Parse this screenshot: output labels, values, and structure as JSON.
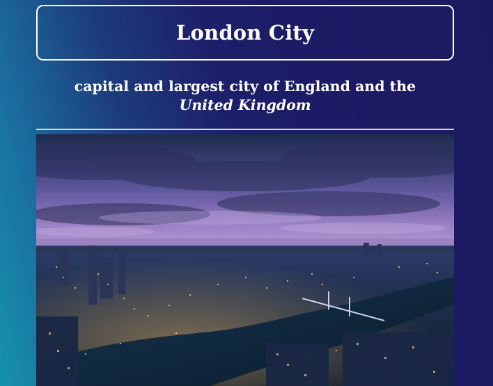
{
  "header": {
    "title": "London City"
  },
  "subtitle": {
    "text": "capital and largest city of England and the",
    "emphasis": "United Kingdom"
  },
  "image": {
    "icon": "city-skyline-photo",
    "sky_top": "#1d2a4d",
    "sky_mid": "#5b5c9c",
    "sky_horizon": "#9b7fc0",
    "river": "#0d2438",
    "lights": "#f3c66b"
  }
}
